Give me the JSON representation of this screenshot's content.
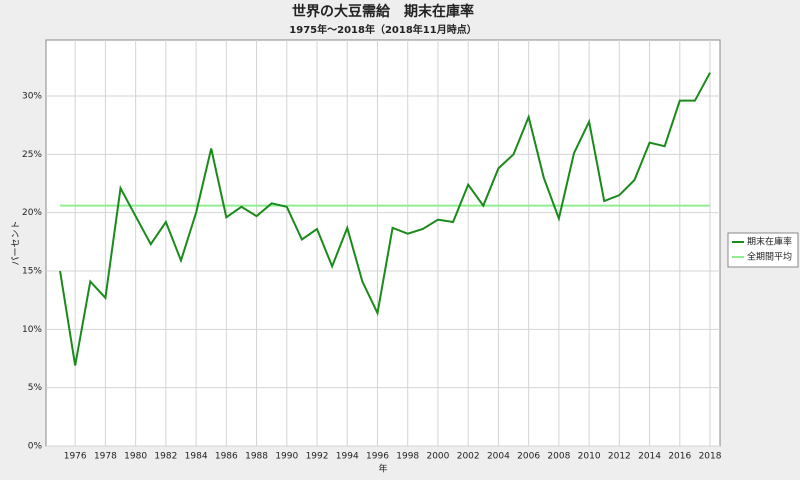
{
  "chart_data": {
    "type": "line",
    "title": "世界の大豆需給　期末在庫率",
    "subtitle": "1975年～2018年（2018年11月時点）",
    "x_label": "年",
    "y_label": "パーセント",
    "x": [
      1975,
      1976,
      1977,
      1978,
      1979,
      1980,
      1981,
      1982,
      1983,
      1984,
      1985,
      1986,
      1987,
      1988,
      1989,
      1990,
      1991,
      1992,
      1993,
      1994,
      1995,
      1996,
      1997,
      1998,
      1999,
      2000,
      2001,
      2002,
      2003,
      2004,
      2005,
      2006,
      2007,
      2008,
      2009,
      2010,
      2011,
      2012,
      2013,
      2014,
      2015,
      2016,
      2017,
      2018
    ],
    "series": [
      {
        "name": "期末在庫率",
        "color": "#1a8a1a",
        "values": [
          15.0,
          6.9,
          14.1,
          12.7,
          22.1,
          19.7,
          17.3,
          19.2,
          15.9,
          20.0,
          25.5,
          19.6,
          20.5,
          19.7,
          20.8,
          20.5,
          17.7,
          18.6,
          15.4,
          18.7,
          14.1,
          11.4,
          18.7,
          18.2,
          18.6,
          19.4,
          19.2,
          22.4,
          20.6,
          23.8,
          25.0,
          28.2,
          23.0,
          19.5,
          25.1,
          27.8,
          21.0,
          21.5,
          22.8,
          26.0,
          25.7,
          29.6,
          29.6,
          32.0
        ]
      },
      {
        "name": "全期間平均",
        "color": "#90ee90",
        "values": [
          20.6,
          20.6,
          20.6,
          20.6,
          20.6,
          20.6,
          20.6,
          20.6,
          20.6,
          20.6,
          20.6,
          20.6,
          20.6,
          20.6,
          20.6,
          20.6,
          20.6,
          20.6,
          20.6,
          20.6,
          20.6,
          20.6,
          20.6,
          20.6,
          20.6,
          20.6,
          20.6,
          20.6,
          20.6,
          20.6,
          20.6,
          20.6,
          20.6,
          20.6,
          20.6,
          20.6,
          20.6,
          20.6,
          20.6,
          20.6,
          20.6,
          20.6,
          20.6,
          20.6
        ]
      }
    ],
    "xlim": [
      1974.07,
      2018.66
    ],
    "xticks": [
      1976,
      1978,
      1980,
      1982,
      1984,
      1986,
      1988,
      1990,
      1992,
      1994,
      1996,
      1998,
      2000,
      2002,
      2004,
      2006,
      2008,
      2010,
      2012,
      2014,
      2016,
      2018
    ],
    "ylim": [
      0,
      34.8
    ],
    "yticks": [
      {
        "value": 0,
        "label": "0%"
      },
      {
        "value": 5,
        "label": "5%"
      },
      {
        "value": 10,
        "label": "10%"
      },
      {
        "value": 15,
        "label": "15%"
      },
      {
        "value": 20,
        "label": "20%"
      },
      {
        "value": 25,
        "label": "25%"
      },
      {
        "value": 30,
        "label": "30%"
      }
    ],
    "grid": true,
    "legend": "right"
  }
}
